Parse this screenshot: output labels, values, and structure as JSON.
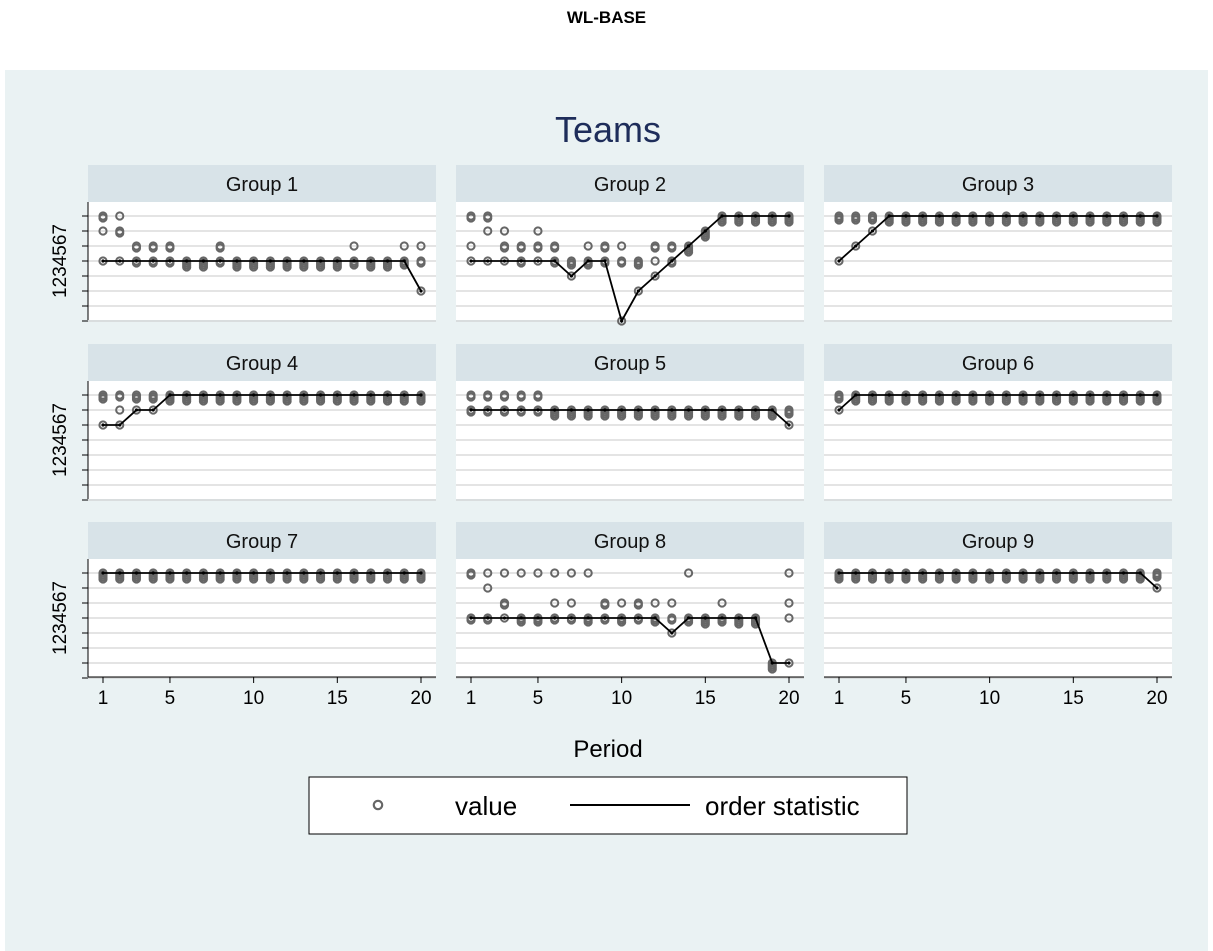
{
  "page": {
    "title": "WL-BASE"
  },
  "chart_data": {
    "type": "scatter",
    "title": "Teams",
    "xlabel": "Period",
    "ylabel": "",
    "x_ticks": [
      1,
      5,
      10,
      15,
      20
    ],
    "y_tick_label": "1234567",
    "xlim": [
      1,
      20
    ],
    "ylim": [
      0,
      8
    ],
    "grid": true,
    "legend": {
      "position": "bottom",
      "entries": [
        "value",
        "order statistic"
      ]
    },
    "colors": {
      "background": "#eaf2f3",
      "strip": "#d8e3e8",
      "value_marker": "#666666",
      "order_line": "#000000",
      "title": "#1e2d5a"
    },
    "panels": [
      {
        "name": "Group 1",
        "order_statistic": [
          4,
          4,
          4,
          4,
          4,
          4,
          4,
          4,
          4,
          4,
          4,
          4,
          4,
          4,
          4,
          4,
          4,
          4,
          4,
          2
        ],
        "values": [
          [
            7,
            7,
            6,
            4
          ],
          [
            7,
            6,
            6,
            4
          ],
          [
            5,
            5,
            4,
            4
          ],
          [
            5,
            5,
            4,
            4
          ],
          [
            5,
            5,
            4,
            4
          ],
          [
            4,
            4,
            4,
            4
          ],
          [
            4,
            4,
            4,
            4
          ],
          [
            5,
            5,
            4,
            4
          ],
          [
            4,
            4,
            4,
            4
          ],
          [
            4,
            4,
            4,
            4
          ],
          [
            4,
            4,
            4,
            4
          ],
          [
            4,
            4,
            4,
            4
          ],
          [
            4,
            4,
            4,
            4
          ],
          [
            4,
            4,
            4,
            4
          ],
          [
            4,
            4,
            4,
            4
          ],
          [
            5,
            4,
            4,
            4
          ],
          [
            4,
            4,
            4,
            4
          ],
          [
            4,
            4,
            4,
            4
          ],
          [
            5,
            4,
            4,
            4
          ],
          [
            5,
            4,
            4,
            2
          ]
        ]
      },
      {
        "name": "Group 2",
        "order_statistic": [
          4,
          4,
          4,
          4,
          4,
          4,
          3,
          4,
          4,
          0,
          2,
          3,
          4,
          5,
          6,
          7,
          7,
          7,
          7,
          7
        ],
        "values": [
          [
            7,
            7,
            5,
            4
          ],
          [
            7,
            7,
            6,
            4
          ],
          [
            6,
            5,
            5,
            4
          ],
          [
            5,
            5,
            4,
            4
          ],
          [
            6,
            5,
            5,
            4
          ],
          [
            5,
            5,
            4,
            4
          ],
          [
            4,
            4,
            4,
            3
          ],
          [
            5,
            4,
            4,
            4
          ],
          [
            5,
            5,
            4,
            4
          ],
          [
            5,
            4,
            4,
            0
          ],
          [
            4,
            4,
            4,
            2
          ],
          [
            5,
            5,
            4,
            3
          ],
          [
            5,
            5,
            4,
            4
          ],
          [
            5,
            5,
            5,
            5
          ],
          [
            6,
            6,
            6,
            6
          ],
          [
            7,
            7,
            7,
            7
          ],
          [
            7,
            7,
            7,
            7
          ],
          [
            7,
            7,
            7,
            7
          ],
          [
            7,
            7,
            7,
            7
          ],
          [
            7,
            7,
            7,
            7
          ]
        ]
      },
      {
        "name": "Group 3",
        "order_statistic": [
          4,
          5,
          6,
          7,
          7,
          7,
          7,
          7,
          7,
          7,
          7,
          7,
          7,
          7,
          7,
          7,
          7,
          7,
          7,
          7
        ],
        "values": [
          [
            7,
            7,
            7,
            4
          ],
          [
            7,
            7,
            7,
            5
          ],
          [
            7,
            7,
            7,
            6
          ],
          [
            7,
            7,
            7,
            7
          ],
          [
            7,
            7,
            7,
            7
          ],
          [
            7,
            7,
            7,
            7
          ],
          [
            7,
            7,
            7,
            7
          ],
          [
            7,
            7,
            7,
            7
          ],
          [
            7,
            7,
            7,
            7
          ],
          [
            7,
            7,
            7,
            7
          ],
          [
            7,
            7,
            7,
            7
          ],
          [
            7,
            7,
            7,
            7
          ],
          [
            7,
            7,
            7,
            7
          ],
          [
            7,
            7,
            7,
            7
          ],
          [
            7,
            7,
            7,
            7
          ],
          [
            7,
            7,
            7,
            7
          ],
          [
            7,
            7,
            7,
            7
          ],
          [
            7,
            7,
            7,
            7
          ],
          [
            7,
            7,
            7,
            7
          ],
          [
            7,
            7,
            7,
            7
          ]
        ]
      },
      {
        "name": "Group 4",
        "order_statistic": [
          5,
          5,
          6,
          6,
          7,
          7,
          7,
          7,
          7,
          7,
          7,
          7,
          7,
          7,
          7,
          7,
          7,
          7,
          7,
          7
        ],
        "values": [
          [
            7,
            7,
            7,
            5
          ],
          [
            7,
            7,
            6,
            5
          ],
          [
            7,
            7,
            7,
            6
          ],
          [
            7,
            7,
            7,
            6
          ],
          [
            7,
            7,
            7,
            7
          ],
          [
            7,
            7,
            7,
            7
          ],
          [
            7,
            7,
            7,
            7
          ],
          [
            7,
            7,
            7,
            7
          ],
          [
            7,
            7,
            7,
            7
          ],
          [
            7,
            7,
            7,
            7
          ],
          [
            7,
            7,
            7,
            7
          ],
          [
            7,
            7,
            7,
            7
          ],
          [
            7,
            7,
            7,
            7
          ],
          [
            7,
            7,
            7,
            7
          ],
          [
            7,
            7,
            7,
            7
          ],
          [
            7,
            7,
            7,
            7
          ],
          [
            7,
            7,
            7,
            7
          ],
          [
            7,
            7,
            7,
            7
          ],
          [
            7,
            7,
            7,
            7
          ],
          [
            7,
            7,
            7,
            7
          ]
        ]
      },
      {
        "name": "Group 5",
        "order_statistic": [
          6,
          6,
          6,
          6,
          6,
          6,
          6,
          6,
          6,
          6,
          6,
          6,
          6,
          6,
          6,
          6,
          6,
          6,
          6,
          5
        ],
        "values": [
          [
            7,
            7,
            6,
            6
          ],
          [
            7,
            7,
            6,
            6
          ],
          [
            7,
            7,
            6,
            6
          ],
          [
            7,
            7,
            6,
            6
          ],
          [
            7,
            7,
            6,
            6
          ],
          [
            6,
            6,
            6,
            6
          ],
          [
            6,
            6,
            6,
            6
          ],
          [
            6,
            6,
            6,
            6
          ],
          [
            6,
            6,
            6,
            6
          ],
          [
            6,
            6,
            6,
            6
          ],
          [
            6,
            6,
            6,
            6
          ],
          [
            6,
            6,
            6,
            6
          ],
          [
            6,
            6,
            6,
            6
          ],
          [
            6,
            6,
            6,
            6
          ],
          [
            6,
            6,
            6,
            6
          ],
          [
            6,
            6,
            6,
            6
          ],
          [
            6,
            6,
            6,
            6
          ],
          [
            6,
            6,
            6,
            6
          ],
          [
            6,
            6,
            6,
            6
          ],
          [
            6,
            6,
            6,
            5
          ]
        ]
      },
      {
        "name": "Group 6",
        "order_statistic": [
          6,
          7,
          7,
          7,
          7,
          7,
          7,
          7,
          7,
          7,
          7,
          7,
          7,
          7,
          7,
          7,
          7,
          7,
          7,
          7
        ],
        "values": [
          [
            7,
            7,
            7,
            6
          ],
          [
            7,
            7,
            7,
            7
          ],
          [
            7,
            7,
            7,
            7
          ],
          [
            7,
            7,
            7,
            7
          ],
          [
            7,
            7,
            7,
            7
          ],
          [
            7,
            7,
            7,
            7
          ],
          [
            7,
            7,
            7,
            7
          ],
          [
            7,
            7,
            7,
            7
          ],
          [
            7,
            7,
            7,
            7
          ],
          [
            7,
            7,
            7,
            7
          ],
          [
            7,
            7,
            7,
            7
          ],
          [
            7,
            7,
            7,
            7
          ],
          [
            7,
            7,
            7,
            7
          ],
          [
            7,
            7,
            7,
            7
          ],
          [
            7,
            7,
            7,
            7
          ],
          [
            7,
            7,
            7,
            7
          ],
          [
            7,
            7,
            7,
            7
          ],
          [
            7,
            7,
            7,
            7
          ],
          [
            7,
            7,
            7,
            7
          ],
          [
            7,
            7,
            7,
            7
          ]
        ]
      },
      {
        "name": "Group 7",
        "order_statistic": [
          7,
          7,
          7,
          7,
          7,
          7,
          7,
          7,
          7,
          7,
          7,
          7,
          7,
          7,
          7,
          7,
          7,
          7,
          7,
          7
        ],
        "values": [
          [
            7,
            7,
            7,
            7
          ],
          [
            7,
            7,
            7,
            7
          ],
          [
            7,
            7,
            7,
            7
          ],
          [
            7,
            7,
            7,
            7
          ],
          [
            7,
            7,
            7,
            7
          ],
          [
            7,
            7,
            7,
            7
          ],
          [
            7,
            7,
            7,
            7
          ],
          [
            7,
            7,
            7,
            7
          ],
          [
            7,
            7,
            7,
            7
          ],
          [
            7,
            7,
            7,
            7
          ],
          [
            7,
            7,
            7,
            7
          ],
          [
            7,
            7,
            7,
            7
          ],
          [
            7,
            7,
            7,
            7
          ],
          [
            7,
            7,
            7,
            7
          ],
          [
            7,
            7,
            7,
            7
          ],
          [
            7,
            7,
            7,
            7
          ],
          [
            7,
            7,
            7,
            7
          ],
          [
            7,
            7,
            7,
            7
          ],
          [
            7,
            7,
            7,
            7
          ],
          [
            7,
            7,
            7,
            7
          ]
        ]
      },
      {
        "name": "Group 8",
        "order_statistic": [
          4,
          4,
          4,
          4,
          4,
          4,
          4,
          4,
          4,
          4,
          4,
          4,
          3,
          4,
          4,
          4,
          4,
          4,
          1,
          1
        ],
        "values": [
          [
            7,
            7,
            4,
            4
          ],
          [
            7,
            6,
            4,
            4
          ],
          [
            7,
            5,
            5,
            4
          ],
          [
            7,
            4,
            4,
            4
          ],
          [
            7,
            4,
            4,
            4
          ],
          [
            7,
            5,
            4,
            4
          ],
          [
            7,
            5,
            4,
            4
          ],
          [
            7,
            4,
            4,
            4
          ],
          [
            5,
            5,
            4,
            4
          ],
          [
            5,
            4,
            4,
            4
          ],
          [
            5,
            5,
            4,
            4
          ],
          [
            5,
            4,
            4,
            4
          ],
          [
            5,
            4,
            4,
            3
          ],
          [
            7,
            4,
            4,
            4
          ],
          [
            4,
            4,
            4,
            4
          ],
          [
            5,
            4,
            4,
            4
          ],
          [
            4,
            4,
            4,
            4
          ],
          [
            4,
            4,
            4,
            4
          ],
          [
            1,
            1,
            1,
            1
          ],
          [
            7,
            5,
            4,
            1
          ]
        ]
      },
      {
        "name": "Group 9",
        "order_statistic": [
          7,
          7,
          7,
          7,
          7,
          7,
          7,
          7,
          7,
          7,
          7,
          7,
          7,
          7,
          7,
          7,
          7,
          7,
          7,
          6
        ],
        "values": [
          [
            7,
            7,
            7,
            7
          ],
          [
            7,
            7,
            7,
            7
          ],
          [
            7,
            7,
            7,
            7
          ],
          [
            7,
            7,
            7,
            7
          ],
          [
            7,
            7,
            7,
            7
          ],
          [
            7,
            7,
            7,
            7
          ],
          [
            7,
            7,
            7,
            7
          ],
          [
            7,
            7,
            7,
            7
          ],
          [
            7,
            7,
            7,
            7
          ],
          [
            7,
            7,
            7,
            7
          ],
          [
            7,
            7,
            7,
            7
          ],
          [
            7,
            7,
            7,
            7
          ],
          [
            7,
            7,
            7,
            7
          ],
          [
            7,
            7,
            7,
            7
          ],
          [
            7,
            7,
            7,
            7
          ],
          [
            7,
            7,
            7,
            7
          ],
          [
            7,
            7,
            7,
            7
          ],
          [
            7,
            7,
            7,
            7
          ],
          [
            7,
            7,
            7,
            7
          ],
          [
            7,
            7,
            7,
            6
          ]
        ]
      }
    ]
  }
}
